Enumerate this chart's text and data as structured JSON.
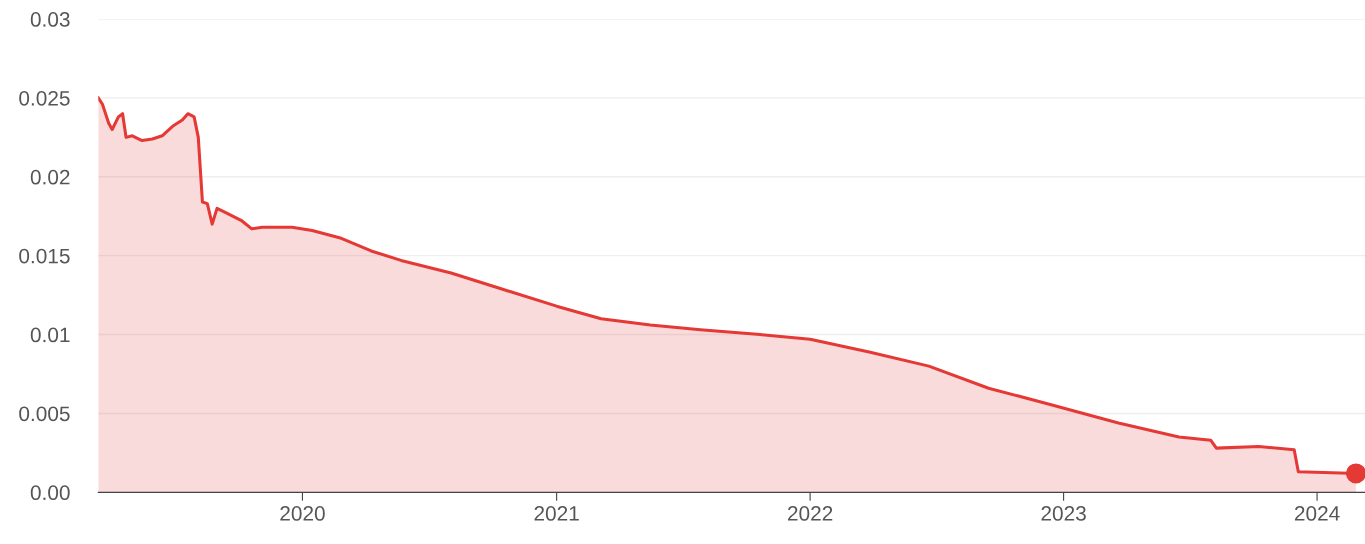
{
  "chart_data": {
    "type": "area",
    "ylim": [
      0,
      0.03
    ],
    "yticks": [
      {
        "value": 0,
        "label": "0.00"
      },
      0.005,
      0.01,
      0.015,
      0.02,
      0.025,
      0.03
    ],
    "xlim": [
      "2019-03-13",
      "2024-03-10"
    ],
    "xticks": [
      {
        "value": "2020-01-01",
        "label": "2020"
      },
      {
        "value": "2021-01-01",
        "label": "2021"
      },
      {
        "value": "2022-01-01",
        "label": "2022"
      },
      {
        "value": "2023-01-01",
        "label": "2023"
      },
      {
        "value": "2024-01-01",
        "label": "2024"
      }
    ],
    "grid": "y",
    "legend": false,
    "series": [
      {
        "color": "#e53935",
        "marker": "none",
        "x": [
          "2019-03-13",
          "2019-03-19",
          "2019-03-28",
          "2019-04-02",
          "2019-04-11",
          "2019-04-17",
          "2019-04-22",
          "2019-05-01",
          "2019-05-15",
          "2019-05-30",
          "2019-06-13",
          "2019-06-28",
          "2019-07-12",
          "2019-07-20",
          "2019-07-29",
          "2019-08-04",
          "2019-08-10",
          "2019-08-17",
          "2019-08-24",
          "2019-08-31",
          "2019-09-14",
          "2019-10-06",
          "2019-10-20",
          "2019-11-04",
          "2019-12-17",
          "2020-01-15",
          "2020-02-26",
          "2020-04-09",
          "2020-05-22",
          "2020-08-02",
          "2020-10-13",
          "2021-01-01",
          "2021-03-06",
          "2021-05-16",
          "2021-07-27",
          "2021-10-21",
          "2022-01-01",
          "2022-03-27",
          "2022-06-21",
          "2022-09-15",
          "2022-12-10",
          "2023-03-21",
          "2023-06-16",
          "2023-08-01",
          "2023-08-09",
          "2023-10-09",
          "2023-11-29",
          "2023-12-05",
          "2024-02-26"
        ],
        "values": [
          0.025,
          0.0246,
          0.0234,
          0.023,
          0.0238,
          0.024,
          0.0225,
          0.0226,
          0.0223,
          0.0224,
          0.0226,
          0.0232,
          0.0236,
          0.024,
          0.0238,
          0.0225,
          0.0184,
          0.0183,
          0.017,
          0.018,
          0.0177,
          0.0172,
          0.0167,
          0.0168,
          0.0168,
          0.0166,
          0.0161,
          0.0153,
          0.0147,
          0.0139,
          0.0129,
          0.0118,
          0.011,
          0.0106,
          0.0103,
          0.01,
          0.0097,
          0.0089,
          0.008,
          0.0066,
          0.0056,
          0.0044,
          0.0035,
          0.0033,
          0.0028,
          0.0029,
          0.0027,
          0.0013,
          0.0012
        ]
      },
      {
        "type": "scatter",
        "color": "#e53935",
        "marker": "circle",
        "x": [
          "2024-02-26"
        ],
        "values": [
          0.0012
        ]
      }
    ]
  }
}
